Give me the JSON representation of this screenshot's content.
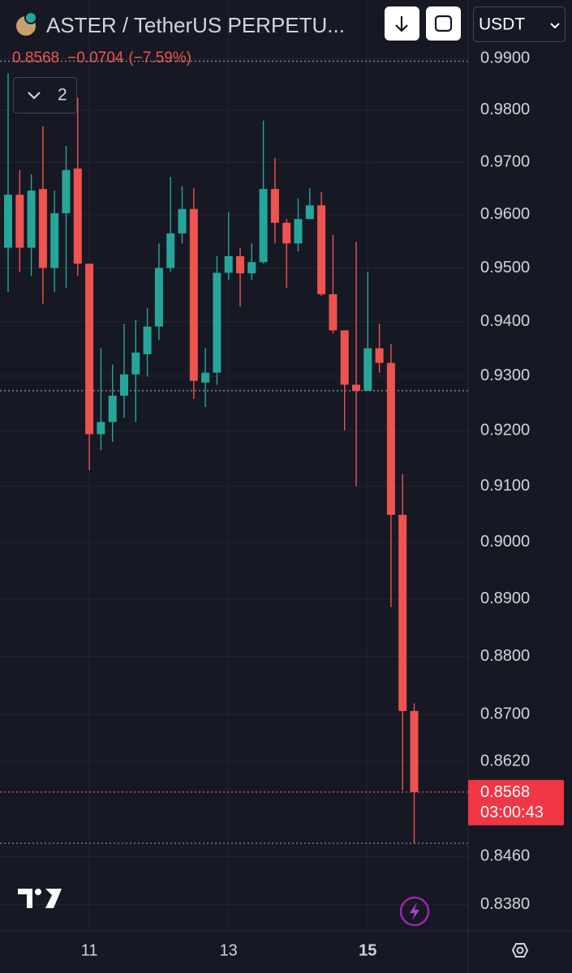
{
  "chart_data": {
    "type": "candlestick",
    "title": "ASTER / TetherUS PERPETU...",
    "currency": "USDT",
    "last_price": 0.8568,
    "last_price_label": "0.8568",
    "change": "−0.0704",
    "change_percent": "(−7.59%)",
    "indicator_count": "2",
    "countdown": "03:00:43",
    "up_color": "#26a69a",
    "down_color": "#ef5350",
    "log_scale": true,
    "grid": true,
    "categories": [
      null,
      null,
      null,
      null,
      null,
      null,
      null,
      "11",
      null,
      null,
      null,
      null,
      null,
      null,
      null,
      null,
      null,
      null,
      null,
      "13",
      null,
      null,
      null,
      null,
      null,
      null,
      null,
      null,
      null,
      null,
      null,
      "15",
      null,
      null,
      null,
      null
    ],
    "open": [
      0.9538,
      0.9638,
      0.9538,
      0.9649,
      0.95,
      0.9603,
      0.9688,
      0.9508,
      0.9194,
      0.9216,
      0.9264,
      0.9303,
      0.934,
      0.9391,
      0.95,
      0.9565,
      0.9611,
      0.9288,
      0.9306,
      0.9491,
      0.9522,
      0.949,
      0.9511,
      0.9649,
      0.9585,
      0.9546,
      0.9592,
      0.9618,
      0.9451,
      0.9384,
      0.9284,
      0.9273,
      0.9351,
      0.9324,
      0.9049,
      0.8706
    ],
    "high": [
      0.9871,
      0.9685,
      0.9677,
      0.9769,
      0.9646,
      0.9731,
      0.9824,
      0.9508,
      0.9351,
      0.9321,
      0.9396,
      0.9403,
      0.9425,
      0.9546,
      0.9672,
      0.9654,
      0.9651,
      0.9351,
      0.9522,
      0.9605,
      0.9538,
      0.9546,
      0.978,
      0.9708,
      0.9592,
      0.9631,
      0.9651,
      0.9643,
      0.9562,
      0.9384,
      0.9549,
      0.9493,
      0.9396,
      0.9359,
      0.9122,
      0.8719
    ],
    "low": [
      0.9455,
      0.9493,
      0.9485,
      0.9433,
      0.9455,
      0.9463,
      0.9485,
      0.9129,
      0.9165,
      0.918,
      0.9224,
      0.9216,
      0.9299,
      0.9366,
      0.9493,
      0.9546,
      0.9258,
      0.9243,
      0.9284,
      0.9478,
      0.9428,
      0.9478,
      0.9508,
      0.9546,
      0.9463,
      0.9531,
      0.9592,
      0.9448,
      0.9378,
      0.9201,
      0.91,
      0.9273,
      0.9306,
      0.8886,
      0.8571,
      0.8482
    ],
    "close": [
      0.9638,
      0.9538,
      0.9646,
      0.95,
      0.9603,
      0.9685,
      0.9508,
      0.9194,
      0.9216,
      0.9264,
      0.9303,
      0.9343,
      0.9391,
      0.95,
      0.9565,
      0.9611,
      0.9291,
      0.9306,
      0.9491,
      0.9522,
      0.949,
      0.9511,
      0.9649,
      0.9585,
      0.9546,
      0.9592,
      0.9618,
      0.9451,
      0.9384,
      0.9284,
      0.9273,
      0.9351,
      0.9324,
      0.9049,
      0.8706,
      0.8568
    ],
    "price_lines": [
      0.9895,
      0.9273,
      0.8482
    ],
    "ylim": [
      0.8337,
      1.0015
    ],
    "yticks": [
      {
        "value": 0.99,
        "label": "0.9900"
      },
      {
        "value": 0.98,
        "label": "0.9800"
      },
      {
        "value": 0.97,
        "label": "0.9700"
      },
      {
        "value": 0.96,
        "label": "0.9600"
      },
      {
        "value": 0.95,
        "label": "0.9500"
      },
      {
        "value": 0.94,
        "label": "0.9400"
      },
      {
        "value": 0.93,
        "label": "0.9300"
      },
      {
        "value": 0.92,
        "label": "0.9200"
      },
      {
        "value": 0.91,
        "label": "0.9100"
      },
      {
        "value": 0.9,
        "label": "0.9000"
      },
      {
        "value": 0.89,
        "label": "0.8900"
      },
      {
        "value": 0.88,
        "label": "0.8800"
      },
      {
        "value": 0.87,
        "label": "0.8700"
      },
      {
        "value": 0.862,
        "label": "0.8620"
      },
      {
        "value": 0.846,
        "label": "0.8460"
      },
      {
        "value": 0.838,
        "label": "0.8380"
      }
    ]
  }
}
